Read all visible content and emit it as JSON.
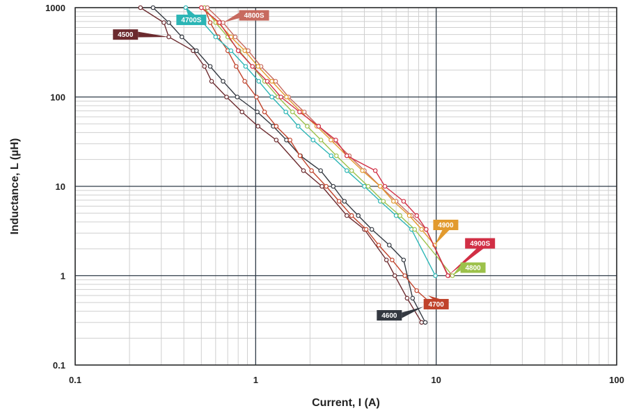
{
  "chart_data": {
    "type": "line",
    "xlabel": "Current, I (A)",
    "ylabel": "Inductance, L (µH)",
    "xscale": "log",
    "yscale": "log",
    "xlim": [
      0.1,
      100
    ],
    "ylim": [
      0.1,
      1000
    ],
    "grid": true,
    "x_ticks": [
      0.1,
      1,
      10,
      100
    ],
    "x_tick_labels": [
      "0.1",
      "1",
      "10",
      "100"
    ],
    "y_ticks": [
      0.1,
      1,
      10,
      100,
      1000
    ],
    "y_tick_labels": [
      "0.1",
      "1",
      "10",
      "100",
      "1000"
    ],
    "series": [
      {
        "name": "4500",
        "color": "#6b2a2e",
        "x": [
          0.23,
          0.31,
          0.33,
          0.45,
          0.52,
          0.57,
          0.69,
          0.84,
          1.03,
          1.3,
          1.84,
          2.33,
          3.2,
          4.0,
          5.3,
          5.9,
          6.9,
          8.3
        ],
        "y": [
          1000,
          680,
          470,
          330,
          220,
          150,
          100,
          68,
          47,
          33,
          15,
          10,
          4.7,
          3.3,
          1.5,
          1.0,
          0.56,
          0.3
        ]
      },
      {
        "name": "4600",
        "color": "#333840",
        "x": [
          0.27,
          0.33,
          0.39,
          0.47,
          0.56,
          0.66,
          0.79,
          1.02,
          1.25,
          1.48,
          1.77,
          2.29,
          2.69,
          3.1,
          3.7,
          4.4,
          5.5,
          6.6,
          7.4,
          8.7
        ],
        "y": [
          1000,
          680,
          470,
          330,
          220,
          150,
          100,
          68,
          47,
          33,
          22,
          15,
          10,
          6.8,
          4.7,
          3.3,
          2.2,
          1.5,
          0.56,
          0.3
        ]
      },
      {
        "name": "4700",
        "color": "#c0432b",
        "x": [
          0.52,
          0.56,
          0.62,
          0.7,
          0.78,
          0.87,
          1.01,
          1.12,
          1.3,
          1.55,
          1.76,
          2.04,
          2.46,
          2.9,
          3.4,
          4.1,
          4.8,
          5.7,
          6.7,
          7.8,
          9.6
        ],
        "y": [
          1000,
          680,
          470,
          330,
          220,
          150,
          100,
          68,
          47,
          33,
          22,
          15,
          10,
          6.8,
          4.7,
          3.3,
          2.2,
          1.5,
          1.0,
          0.68,
          0.47
        ]
      },
      {
        "name": "4700S",
        "color": "#2bb5b5",
        "x": [
          0.41,
          0.51,
          0.6,
          0.73,
          0.88,
          1.04,
          1.23,
          1.47,
          1.72,
          2.08,
          2.62,
          3.2,
          4.0,
          4.9,
          6.0,
          7.3,
          9.9
        ],
        "y": [
          1000,
          680,
          470,
          330,
          220,
          150,
          100,
          68,
          47,
          33,
          22,
          15,
          10,
          6.8,
          4.7,
          3.3,
          1.0
        ]
      },
      {
        "name": "4800",
        "color": "#9cc14a",
        "x": [
          0.52,
          0.6,
          0.7,
          0.81,
          0.96,
          1.12,
          1.33,
          1.6,
          1.93,
          2.3,
          2.8,
          3.4,
          4.2,
          5.1,
          6.3,
          7.6,
          12.3
        ],
        "y": [
          1000,
          680,
          470,
          330,
          220,
          150,
          100,
          68,
          47,
          33,
          22,
          15,
          10,
          6.8,
          4.7,
          3.3,
          1.0
        ]
      },
      {
        "name": "4800S",
        "color": "#c76a5f",
        "x": [
          0.54,
          0.66,
          0.77,
          0.91,
          1.07,
          1.29,
          1.52,
          1.86,
          2.23,
          2.7,
          3.3,
          4.0,
          4.9,
          6.0,
          7.3,
          8.8,
          11.7
        ],
        "y": [
          1000,
          680,
          470,
          330,
          220,
          150,
          100,
          68,
          47,
          33,
          22,
          15,
          10,
          6.8,
          4.7,
          3.3,
          1.0
        ]
      },
      {
        "name": "4900",
        "color": "#e29a2e",
        "x": [
          0.5,
          0.62,
          0.73,
          0.87,
          1.03,
          1.23,
          1.48,
          1.78,
          2.18,
          2.61,
          3.2,
          3.9,
          4.9,
          5.8,
          7.1,
          8.3,
          9.8
        ],
        "y": [
          1000,
          680,
          470,
          330,
          220,
          150,
          100,
          68,
          47,
          33,
          22,
          15,
          10,
          6.8,
          4.7,
          3.3,
          2.2
        ]
      },
      {
        "name": "4900S",
        "color": "#d12f45",
        "x": [
          0.5,
          0.63,
          0.8,
          0.96,
          1.16,
          1.38,
          1.75,
          2.23,
          2.78,
          3.2,
          4.6,
          5.2,
          6.6,
          7.8,
          8.8,
          11.6
        ],
        "y": [
          1000,
          680,
          330,
          220,
          150,
          100,
          68,
          47,
          33,
          22,
          15,
          10,
          6.8,
          4.7,
          3.3,
          1.0
        ]
      }
    ],
    "annotations": [
      {
        "text": "4500",
        "series": "4500",
        "label_x": 0.19,
        "label_y": 500,
        "anchor_x": 0.33,
        "anchor_y": 470
      },
      {
        "text": "4700S",
        "series": "4700S",
        "label_x": 0.44,
        "label_y": 730,
        "anchor_x": 0.41,
        "anchor_y": 1000
      },
      {
        "text": "4800S",
        "series": "4800S",
        "label_x": 0.98,
        "label_y": 820,
        "anchor_x": 0.66,
        "anchor_y": 680
      },
      {
        "text": "4900",
        "series": "4900",
        "label_x": 11.3,
        "label_y": 3.7,
        "anchor_x": 9.8,
        "anchor_y": 2.2
      },
      {
        "text": "4900S",
        "series": "4900S",
        "label_x": 17.5,
        "label_y": 2.3,
        "anchor_x": 11.6,
        "anchor_y": 1.0
      },
      {
        "text": "4800",
        "series": "4800",
        "label_x": 16.0,
        "label_y": 1.23,
        "anchor_x": 12.3,
        "anchor_y": 1.0
      },
      {
        "text": "4700",
        "series": "4700",
        "label_x": 10.0,
        "label_y": 0.48,
        "anchor_x": 9.0,
        "anchor_y": 0.6
      },
      {
        "text": "4600",
        "series": "4600",
        "label_x": 5.5,
        "label_y": 0.36,
        "anchor_x": 8.5,
        "anchor_y": 0.45
      }
    ]
  }
}
